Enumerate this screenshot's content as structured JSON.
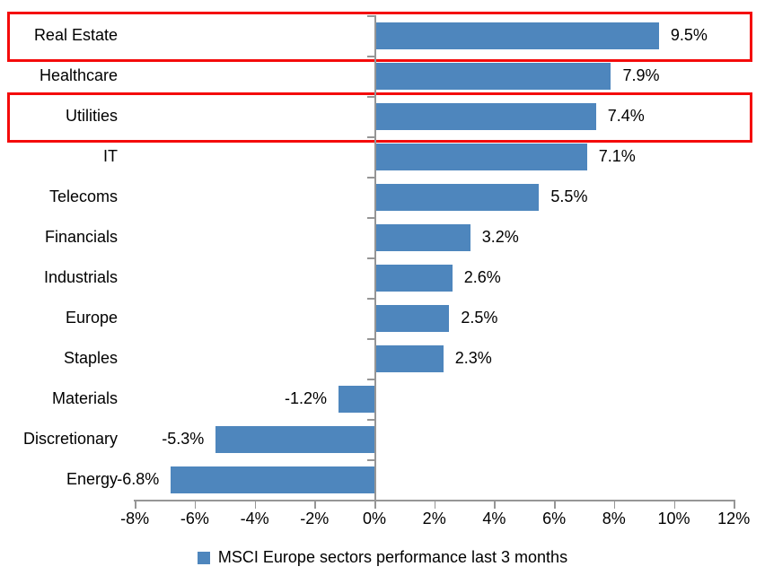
{
  "chart_data": {
    "type": "bar",
    "orientation": "horizontal",
    "title": "",
    "categories": [
      "Real Estate",
      "Healthcare",
      "Utilities",
      "IT",
      "Telecoms",
      "Financials",
      "Industrials",
      "Europe",
      "Staples",
      "Materials",
      "Discretionary",
      "Energy"
    ],
    "values": [
      9.5,
      7.9,
      7.4,
      7.1,
      5.5,
      3.2,
      2.6,
      2.5,
      2.3,
      -1.2,
      -5.3,
      -6.8
    ],
    "value_labels": [
      "9.5%",
      "7.9%",
      "7.4%",
      "7.1%",
      "5.5%",
      "3.2%",
      "2.6%",
      "2.5%",
      "2.3%",
      "-1.2%",
      "-5.3%",
      "-6.8%"
    ],
    "x_tick_labels": [
      "-8%",
      "-6%",
      "-4%",
      "-2%",
      "0%",
      "2%",
      "4%",
      "6%",
      "8%",
      "10%",
      "12%"
    ],
    "x_tick_values": [
      -8,
      -6,
      -4,
      -2,
      0,
      2,
      4,
      6,
      8,
      10,
      12
    ],
    "xlim": [
      -8,
      12
    ],
    "grid": false,
    "legend": "MSCI Europe sectors performance last 3 months",
    "legend_position": "bottom-center",
    "bar_color": "#4E86BD",
    "axis_color": "#969696",
    "text_color": "#000000",
    "highlighted_categories": [
      "Real Estate",
      "Utilities"
    ],
    "highlight_color": "#F40B0B"
  }
}
